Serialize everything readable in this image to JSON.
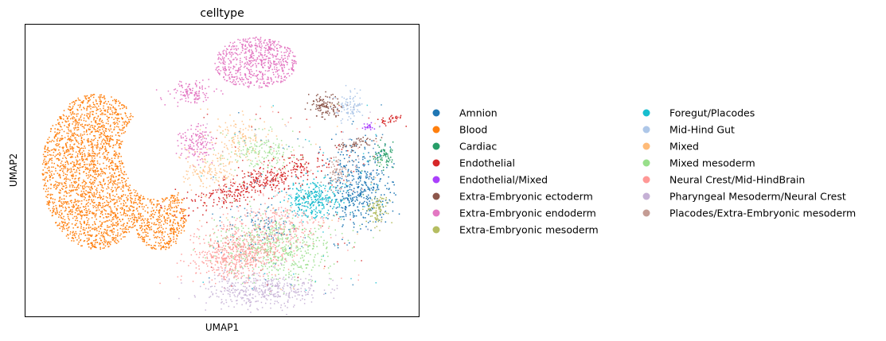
{
  "chart_data": {
    "type": "scatter",
    "title": "celltype",
    "xlabel": "UMAP1",
    "ylabel": "UMAP2",
    "grid": false,
    "ticks": false,
    "legend_position": "right",
    "legend_columns": 2,
    "series": [
      {
        "name": "Amnion",
        "color": "#1f77b4"
      },
      {
        "name": "Blood",
        "color": "#ff7f0e"
      },
      {
        "name": "Cardiac",
        "color": "#279e68"
      },
      {
        "name": "Endothelial",
        "color": "#d62728"
      },
      {
        "name": "Endothelial/Mixed",
        "color": "#aa40fc"
      },
      {
        "name": "Extra-Embryonic ectoderm",
        "color": "#8c564b"
      },
      {
        "name": "Extra-Embryonic endoderm",
        "color": "#e377c2"
      },
      {
        "name": "Extra-Embryonic mesoderm",
        "color": "#b5bd61"
      },
      {
        "name": "Foregut/Placodes",
        "color": "#17becf"
      },
      {
        "name": "Mid-Hind Gut",
        "color": "#aec7e8"
      },
      {
        "name": "Mixed",
        "color": "#ffbb78"
      },
      {
        "name": "Mixed mesoderm",
        "color": "#98df8a"
      },
      {
        "name": "Neural Crest/Mid-HindBrain",
        "color": "#ff9896"
      },
      {
        "name": "Pharyngeal Mesoderm/Neural Crest",
        "color": "#c5b0d5"
      },
      {
        "name": "Placodes/Extra-Embryonic mesoderm",
        "color": "#c49c94"
      }
    ]
  }
}
